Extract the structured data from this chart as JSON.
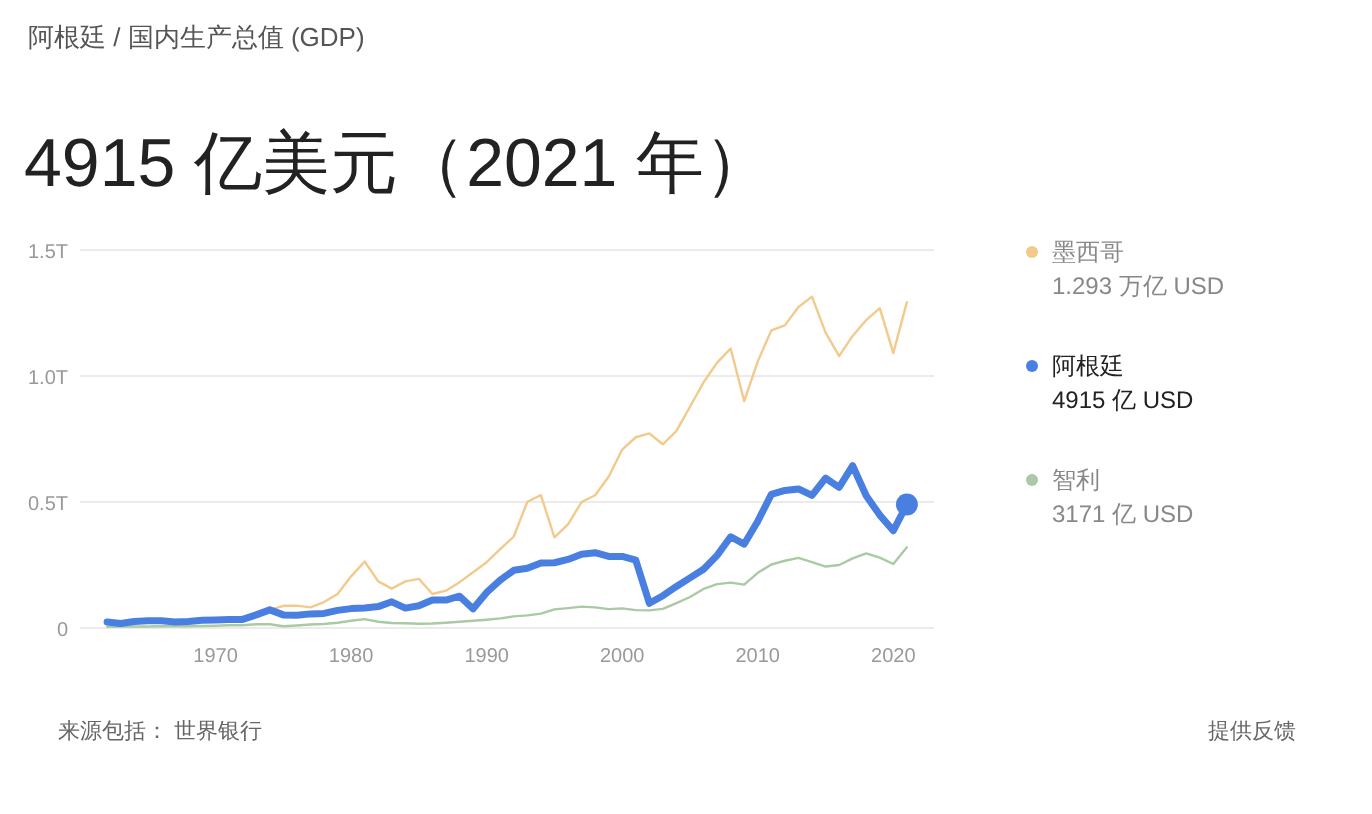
{
  "chart_data": {
    "type": "line",
    "subtitle": "阿根廷 / 国内生产总值 (GDP)",
    "title": "4915 亿美元（2021 年）",
    "x": [
      1962,
      1963,
      1964,
      1965,
      1966,
      1967,
      1968,
      1969,
      1970,
      1971,
      1972,
      1973,
      1974,
      1975,
      1976,
      1977,
      1978,
      1979,
      1980,
      1981,
      1982,
      1983,
      1984,
      1985,
      1986,
      1987,
      1988,
      1989,
      1990,
      1991,
      1992,
      1993,
      1994,
      1995,
      1996,
      1997,
      1998,
      1999,
      2000,
      2001,
      2002,
      2003,
      2004,
      2005,
      2006,
      2007,
      2008,
      2009,
      2010,
      2011,
      2012,
      2013,
      2014,
      2015,
      2016,
      2017,
      2018,
      2019,
      2020,
      2021
    ],
    "series": [
      {
        "name": "墨西哥",
        "color": "#f2ca8c",
        "values": [
          null,
          null,
          null,
          null,
          null,
          null,
          null,
          null,
          null,
          null,
          null,
          null,
          0.072,
          0.088,
          0.089,
          0.082,
          0.103,
          0.135,
          0.205,
          0.264,
          0.185,
          0.156,
          0.185,
          0.195,
          0.135,
          0.148,
          0.182,
          0.221,
          0.261,
          0.313,
          0.363,
          0.501,
          0.527,
          0.36,
          0.411,
          0.5,
          0.527,
          0.6,
          0.708,
          0.757,
          0.772,
          0.729,
          0.782,
          0.878,
          0.975,
          1.053,
          1.109,
          0.9,
          1.058,
          1.181,
          1.201,
          1.274,
          1.315,
          1.172,
          1.079,
          1.159,
          1.222,
          1.269,
          1.091,
          1.293
        ]
      },
      {
        "name": "阿根廷",
        "color": "#4a7fe2",
        "values": [
          0.024,
          0.018,
          0.026,
          0.029,
          0.029,
          0.024,
          0.026,
          0.031,
          0.032,
          0.034,
          0.034,
          0.052,
          0.072,
          0.052,
          0.051,
          0.056,
          0.058,
          0.07,
          0.077,
          0.079,
          0.085,
          0.104,
          0.079,
          0.088,
          0.111,
          0.111,
          0.126,
          0.076,
          0.141,
          0.19,
          0.229,
          0.237,
          0.258,
          0.259,
          0.272,
          0.293,
          0.299,
          0.284,
          0.284,
          0.269,
          0.098,
          0.128,
          0.165,
          0.199,
          0.233,
          0.288,
          0.362,
          0.333,
          0.424,
          0.53,
          0.546,
          0.552,
          0.526,
          0.595,
          0.558,
          0.644,
          0.525,
          0.448,
          0.386,
          0.49
        ]
      },
      {
        "name": "智利",
        "color": "#a9caa3",
        "values": [
          0.005,
          0.006,
          0.006,
          0.006,
          0.007,
          0.007,
          0.007,
          0.008,
          0.009,
          0.011,
          0.011,
          0.015,
          0.015,
          0.007,
          0.01,
          0.014,
          0.016,
          0.021,
          0.029,
          0.035,
          0.025,
          0.02,
          0.019,
          0.017,
          0.018,
          0.021,
          0.025,
          0.029,
          0.033,
          0.038,
          0.046,
          0.05,
          0.057,
          0.074,
          0.079,
          0.085,
          0.082,
          0.075,
          0.078,
          0.071,
          0.07,
          0.076,
          0.099,
          0.123,
          0.155,
          0.174,
          0.18,
          0.172,
          0.219,
          0.252,
          0.267,
          0.278,
          0.261,
          0.244,
          0.25,
          0.276,
          0.296,
          0.279,
          0.254,
          0.32
        ]
      }
    ],
    "xlim": [
      1960,
      2023
    ],
    "xticks": [
      1970,
      1980,
      1990,
      2000,
      2010,
      2020
    ],
    "ylim": [
      0,
      1.5
    ],
    "yticks": [
      0,
      {
        "value": 0.5,
        "label": "0.5T"
      },
      {
        "value": 1.0,
        "label": "1.0T"
      },
      {
        "value": 1.5,
        "label": "1.5T"
      }
    ],
    "grid": "y",
    "legend": "right",
    "annotations": [
      "1.293 万亿 USD",
      "4915 亿 USD",
      "3171 亿 USD",
      "来源包括：  世界银行",
      "提供反馈"
    ]
  }
}
